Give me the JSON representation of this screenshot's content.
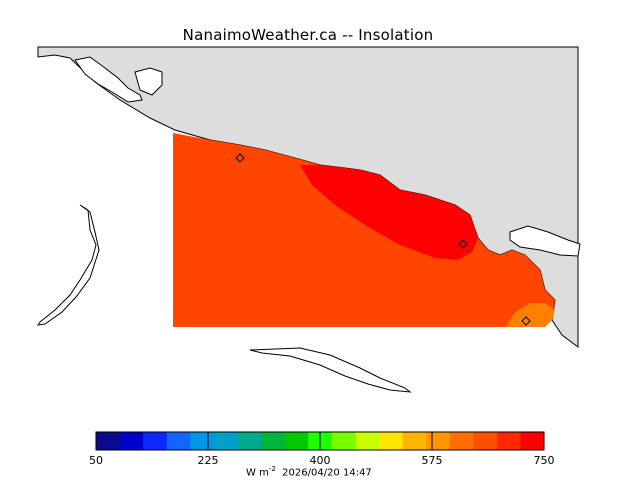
{
  "title": "NanaimoWeather.ca -- Insolation",
  "colorbar": {
    "tick_labels": [
      "50",
      "225",
      "400",
      "575",
      "750"
    ],
    "tick_values": [
      50,
      225,
      400,
      575,
      750
    ],
    "min": 50,
    "max": 750,
    "colors": [
      "#0a0a8c",
      "#0000cd",
      "#0a28ff",
      "#1464ff",
      "#0096e6",
      "#00a0c8",
      "#00aa8c",
      "#00b43c",
      "#00c800",
      "#1eff00",
      "#78ff00",
      "#c8ff00",
      "#ffe600",
      "#ffb400",
      "#ff9600",
      "#ff6e00",
      "#ff5000",
      "#ff2800",
      "#ff0000"
    ]
  },
  "units": {
    "base": "W m",
    "exponent": "-2"
  },
  "timestamp": "2026/04/20 14:47",
  "map": {
    "land_color": "#dddddd",
    "field_colors": {
      "base": "#ff4500",
      "high": "#ff0000",
      "low_patch": "#ff7f00"
    },
    "station_markers": [
      "station-1",
      "station-2",
      "station-3"
    ]
  }
}
